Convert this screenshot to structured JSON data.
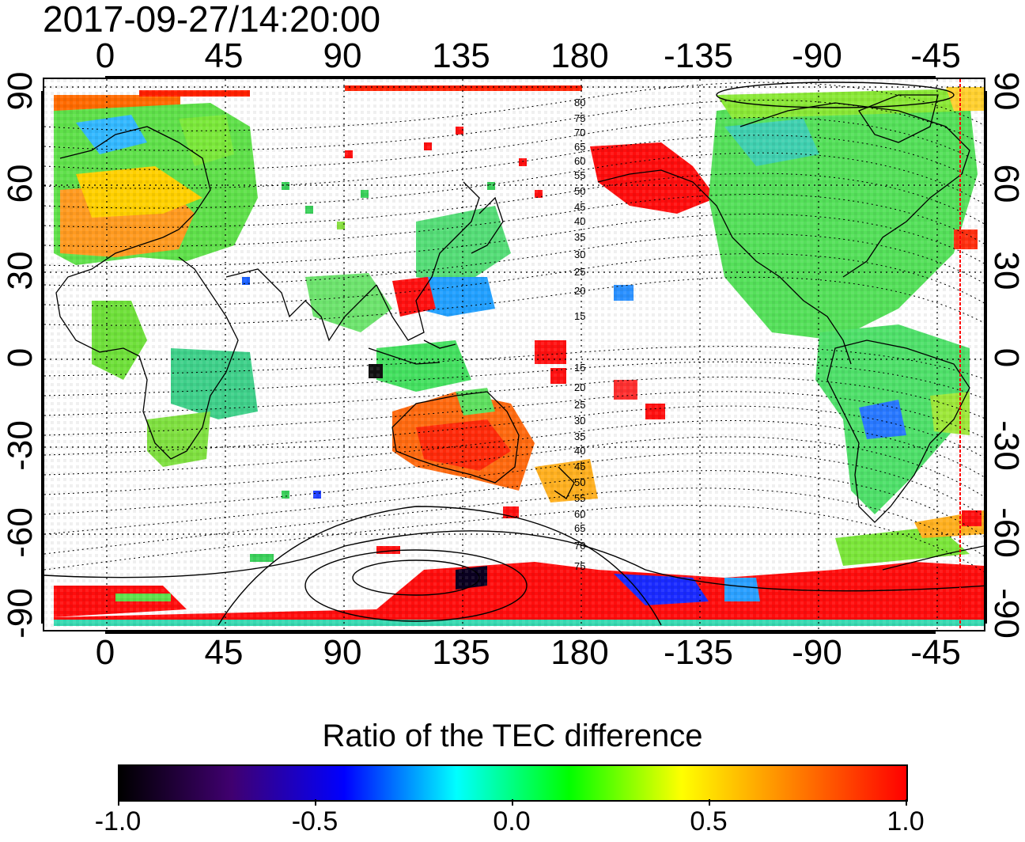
{
  "title": "2017-09-27/14:20:00",
  "lon_ticks": [
    "0",
    "45",
    "90",
    "135",
    "180",
    "-135",
    "-90",
    "-45"
  ],
  "lat_ticks_left": [
    "90",
    "60",
    "30",
    "0",
    "-30",
    "-60",
    "-90"
  ],
  "lat_ticks_right": [
    "90",
    "60",
    "30",
    "0",
    "-30",
    "-60",
    "-90"
  ],
  "contour_labels_north": [
    "80",
    "75",
    "70",
    "65",
    "60",
    "55",
    "50",
    "45",
    "40",
    "35",
    "30",
    "25",
    "20",
    "15"
  ],
  "contour_labels_south": [
    "15",
    "20",
    "25",
    "30",
    "35",
    "40",
    "45",
    "50",
    "55",
    "60",
    "65",
    "70",
    "75"
  ],
  "colorbar": {
    "title": "Ratio of the TEC difference",
    "labels": [
      "-1.0",
      "-0.5",
      "0.0",
      "0.5",
      "1.0"
    ],
    "colors": [
      "#000000",
      "#400070",
      "#0000ff",
      "#00ffff",
      "#00ff00",
      "#ffff00",
      "#ff8000",
      "#ff0000"
    ]
  },
  "colors": {
    "coastline": "#000000",
    "grid": "#000000",
    "terminator_line": "#ff0000",
    "positive_high": "#ff0000",
    "near_zero": "#00ff00",
    "negative": "#0000ff"
  }
}
